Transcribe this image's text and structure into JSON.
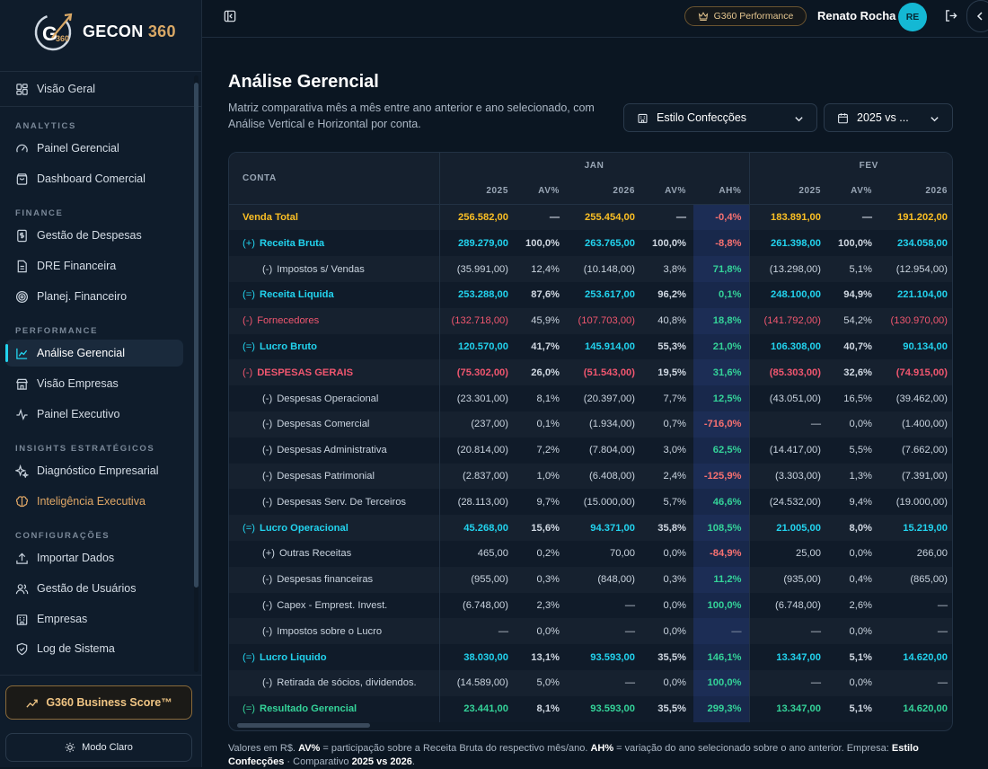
{
  "brand": {
    "name": "GECON",
    "number": "360",
    "mark": "G360"
  },
  "sidebar": {
    "top_item": {
      "label": "Visão Geral",
      "icon": "grid-icon"
    },
    "sections": [
      {
        "title": "ANALYTICS",
        "items": [
          {
            "label": "Painel Gerencial",
            "icon": "gauge-icon"
          },
          {
            "label": "Dashboard Comercial",
            "icon": "bag-icon"
          }
        ]
      },
      {
        "title": "FINANCE",
        "items": [
          {
            "label": "Gestão de Despesas",
            "icon": "dollar-doc-icon"
          },
          {
            "label": "DRE Financeira",
            "icon": "document-icon"
          },
          {
            "label": "Planej. Financeiro",
            "icon": "target-icon"
          }
        ]
      },
      {
        "title": "PERFORMANCE",
        "items": [
          {
            "label": "Análise Gerencial",
            "icon": "line-chart-icon",
            "active": true
          },
          {
            "label": "Visão Empresas",
            "icon": "store-icon"
          },
          {
            "label": "Painel Executivo",
            "icon": "pulse-icon"
          }
        ]
      },
      {
        "title": "INSIGHTS ESTRATÉGICOS",
        "items": [
          {
            "label": "Diagnóstico Empresarial",
            "icon": "sparkles-icon"
          },
          {
            "label": "Inteligência Executiva",
            "icon": "brain-icon"
          }
        ]
      },
      {
        "title": "CONFIGURAÇÕES",
        "items": [
          {
            "label": "Importar Dados",
            "icon": "upload-icon"
          },
          {
            "label": "Gestão de Usuários",
            "icon": "users-icon"
          },
          {
            "label": "Empresas",
            "icon": "building-icon"
          },
          {
            "label": "Log de Sistema",
            "icon": "shield-icon"
          }
        ]
      }
    ],
    "business_score_label": "G360 Business Score™",
    "mode_label": "Modo Claro"
  },
  "topbar": {
    "performance_badge": "G360 Performance",
    "user_name": "Renato Rocha",
    "avatar_initials": "RE"
  },
  "page": {
    "title": "Análise Gerencial",
    "subtitle": "Matriz comparativa mês a mês entre ano anterior e ano selecionado, com Análise Vertical e Horizontal por conta.",
    "company_select": "Estilo Confecções",
    "compare_select": "2025 vs ..."
  },
  "table": {
    "conta_header": "CONTA",
    "months": [
      "JAN",
      "FEV"
    ],
    "subheaders": [
      "2025",
      "AV%",
      "2026",
      "AV%",
      "AH%",
      "2025",
      "AV%",
      "2026"
    ],
    "rows": [
      {
        "sign": "",
        "label": "Venda Total",
        "style": "gold",
        "values": [
          "256.582,00",
          "—",
          "255.454,00",
          "—",
          "-0,4%",
          "183.891,00",
          "—",
          "191.202,00"
        ]
      },
      {
        "sign": "(+)",
        "label": "Receita Bruta",
        "style": "cyan",
        "values": [
          "289.279,00",
          "100,0%",
          "263.765,00",
          "100,0%",
          "-8,8%",
          "261.398,00",
          "100,0%",
          "234.058,00"
        ]
      },
      {
        "sign": "(-)",
        "label": "Impostos s/ Vendas",
        "style": "sub",
        "values": [
          "(35.991,00)",
          "12,4%",
          "(10.148,00)",
          "3,8%",
          "71,8%",
          "(13.298,00)",
          "5,1%",
          "(12.954,00)"
        ]
      },
      {
        "sign": "(=)",
        "label": "Receita Liquida",
        "style": "cyan",
        "values": [
          "253.288,00",
          "87,6%",
          "253.617,00",
          "96,2%",
          "0,1%",
          "248.100,00",
          "94,9%",
          "221.104,00"
        ]
      },
      {
        "sign": "(-)",
        "label": "Fornecedores",
        "style": "rose",
        "values": [
          "(132.718,00)",
          "45,9%",
          "(107.703,00)",
          "40,8%",
          "18,8%",
          "(141.792,00)",
          "54,2%",
          "(130.970,00)"
        ]
      },
      {
        "sign": "(=)",
        "label": "Lucro Bruto",
        "style": "cyan",
        "values": [
          "120.570,00",
          "41,7%",
          "145.914,00",
          "55,3%",
          "21,0%",
          "106.308,00",
          "40,7%",
          "90.134,00"
        ]
      },
      {
        "sign": "(-)",
        "label": "DESPESAS GERAIS",
        "style": "red",
        "values": [
          "(75.302,00)",
          "26,0%",
          "(51.543,00)",
          "19,5%",
          "31,6%",
          "(85.303,00)",
          "32,6%",
          "(74.915,00)"
        ]
      },
      {
        "sign": "(-)",
        "label": "Despesas Operacional",
        "style": "sub",
        "values": [
          "(23.301,00)",
          "8,1%",
          "(20.397,00)",
          "7,7%",
          "12,5%",
          "(43.051,00)",
          "16,5%",
          "(39.462,00)"
        ]
      },
      {
        "sign": "(-)",
        "label": "Despesas Comercial",
        "style": "sub",
        "values": [
          "(237,00)",
          "0,1%",
          "(1.934,00)",
          "0,7%",
          "-716,0%",
          "—",
          "0,0%",
          "(1.400,00)"
        ]
      },
      {
        "sign": "(-)",
        "label": "Despesas Administrativa",
        "style": "sub",
        "values": [
          "(20.814,00)",
          "7,2%",
          "(7.804,00)",
          "3,0%",
          "62,5%",
          "(14.417,00)",
          "5,5%",
          "(7.662,00)"
        ]
      },
      {
        "sign": "(-)",
        "label": "Despesas Patrimonial",
        "style": "sub",
        "values": [
          "(2.837,00)",
          "1,0%",
          "(6.408,00)",
          "2,4%",
          "-125,9%",
          "(3.303,00)",
          "1,3%",
          "(7.391,00)"
        ]
      },
      {
        "sign": "(-)",
        "label": "Despesas Serv. De Terceiros",
        "style": "sub",
        "values": [
          "(28.113,00)",
          "9,7%",
          "(15.000,00)",
          "5,7%",
          "46,6%",
          "(24.532,00)",
          "9,4%",
          "(19.000,00)"
        ]
      },
      {
        "sign": "(=)",
        "label": "Lucro Operacional",
        "style": "cyan",
        "values": [
          "45.268,00",
          "15,6%",
          "94.371,00",
          "35,8%",
          "108,5%",
          "21.005,00",
          "8,0%",
          "15.219,00"
        ]
      },
      {
        "sign": "(+)",
        "label": "Outras Receitas",
        "style": "sub",
        "values": [
          "465,00",
          "0,2%",
          "70,00",
          "0,0%",
          "-84,9%",
          "25,00",
          "0,0%",
          "266,00"
        ]
      },
      {
        "sign": "(-)",
        "label": "Despesas financeiras",
        "style": "sub",
        "values": [
          "(955,00)",
          "0,3%",
          "(848,00)",
          "0,3%",
          "11,2%",
          "(935,00)",
          "0,4%",
          "(865,00)"
        ]
      },
      {
        "sign": "(-)",
        "label": "Capex - Emprest. Invest.",
        "style": "sub",
        "values": [
          "(6.748,00)",
          "2,3%",
          "—",
          "0,0%",
          "100,0%",
          "(6.748,00)",
          "2,6%",
          "—"
        ]
      },
      {
        "sign": "(-)",
        "label": "Impostos sobre o Lucro",
        "style": "sub",
        "values": [
          "—",
          "0,0%",
          "—",
          "0,0%",
          "—",
          "—",
          "0,0%",
          "—"
        ]
      },
      {
        "sign": "(=)",
        "label": "Lucro Liquido",
        "style": "cyan",
        "values": [
          "38.030,00",
          "13,1%",
          "93.593,00",
          "35,5%",
          "146,1%",
          "13.347,00",
          "5,1%",
          "14.620,00"
        ]
      },
      {
        "sign": "(-)",
        "label": "Retirada de sócios, dividendos.",
        "style": "sub",
        "values": [
          "(14.589,00)",
          "5,0%",
          "—",
          "0,0%",
          "100,0%",
          "—",
          "0,0%",
          "—"
        ]
      },
      {
        "sign": "(=)",
        "label": "Resultado Gerencial",
        "style": "green",
        "values": [
          "23.441,00",
          "8,1%",
          "93.593,00",
          "35,5%",
          "299,3%",
          "13.347,00",
          "5,1%",
          "14.620,00"
        ]
      }
    ]
  },
  "footnote": {
    "p1": "Valores em R$. ",
    "b1": "AV%",
    "p2": " = participação sobre a Receita Bruta do respectivo mês/ano. ",
    "b2": "AH%",
    "p3": " = variação do ano selecionado sobre o ano anterior. Empresa: ",
    "b3": "Estilo Confecções",
    "p4": " · Comparativo ",
    "b4": "2025 vs 2026",
    "p5": "."
  }
}
